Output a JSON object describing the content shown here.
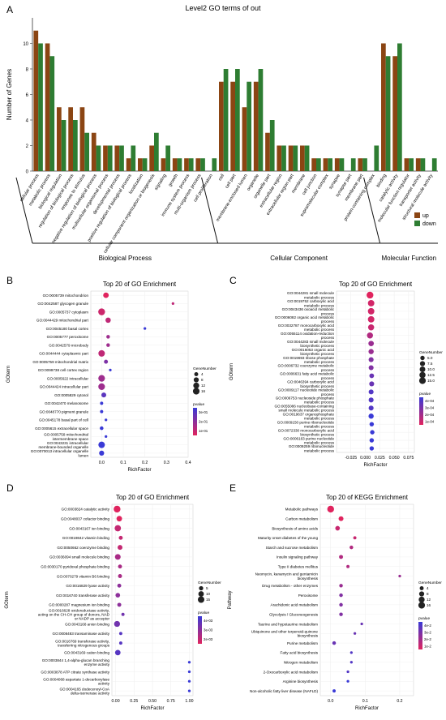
{
  "chart_data": [
    {
      "panel": "A",
      "type": "bar",
      "title": "Level2 GO terms of out",
      "ylabel": "Number of Genes",
      "ylim": [
        0,
        12
      ],
      "yticks": [
        0,
        2,
        4,
        6,
        8,
        10
      ],
      "categories": [
        "cellular process",
        "metabolic process",
        "biological regulation",
        "regulation of biological process",
        "response to stimulus",
        "negative regulation of biological process",
        "multicellular organismal process",
        "developmental process",
        "positive regulation of biological process",
        "localization",
        "cellular component organization or biogenesis",
        "signaling",
        "growth",
        "immune system process",
        "multi-organism process",
        "cell proliferation",
        "cell",
        "cell part",
        "membrane-enclosed lumen",
        "organelle",
        "organelle part",
        "extracellular region",
        "extracellular region part",
        "membrane",
        "cell junction",
        "supramolecular complex",
        "synapse",
        "synapse part",
        "membrane part",
        "protein-containing complex",
        "binding",
        "catalytic activity",
        "molecular function regulator",
        "transporter activity",
        "structural molecule activity"
      ],
      "series": [
        {
          "name": "up",
          "color": "#8b4513",
          "values": [
            11,
            10,
            5,
            5,
            5,
            3,
            2,
            2,
            1,
            1,
            2,
            1,
            1,
            1,
            1,
            0,
            7,
            7,
            5,
            7,
            3,
            2,
            2,
            2,
            1,
            1,
            1,
            0,
            1,
            0,
            10,
            9,
            1,
            1,
            0
          ]
        },
        {
          "name": "down",
          "color": "#2e7d32",
          "values": [
            10,
            9,
            4,
            4,
            3,
            2,
            2,
            2,
            2,
            1,
            3,
            2,
            1,
            1,
            1,
            1,
            8,
            8,
            7,
            8,
            4,
            2,
            2,
            2,
            1,
            1,
            1,
            1,
            1,
            2,
            9,
            10,
            1,
            1,
            1
          ]
        }
      ],
      "groups": [
        {
          "name": "Biological Process",
          "start": 0,
          "end": 15
        },
        {
          "name": "Cellular Component",
          "start": 16,
          "end": 29
        },
        {
          "name": "Molecular Function",
          "start": 30,
          "end": 34
        }
      ],
      "legend": "right"
    },
    {
      "panel": "B",
      "type": "scatter",
      "title": "Top 20 of GO Enrichment",
      "xlabel": "RichFactor",
      "ylabel": "GOterm",
      "xlim": [
        -0.05,
        0.4
      ],
      "xticks": [
        "0.0",
        "0.1",
        "0.2",
        "0.3",
        "0.4"
      ],
      "legend_size_title": "GeneNumber",
      "legend_sizes": [
        4,
        8,
        12,
        16
      ],
      "legend_color_title": "pvalue",
      "legend_color_ticks": [
        "3e-01",
        "2e-01",
        "1e-01"
      ],
      "terms": [
        "GO:0005739 mitochondrion",
        "GO:0042587 glycogen granule",
        "GO:0005737 cytoplasm",
        "GO:0044429 mitochondrial part",
        "GO:0045180 basal cortex",
        "GO:0005777 peroxisome",
        "GO:0042579 microbody",
        "GO:0044444 cytoplasmic part",
        "GO:0005759 mitochondrial matrix",
        "GO:0099738 cell cortex region",
        "GO:0005622 intracellular",
        "GO:0044424 intracellular part",
        "GO:0005829 cytosol",
        "GO:0042470 melanosome",
        "GO:0048770 pigment granule",
        "GO:0045178 basal part of cell",
        "GO:0005615 extracellular space",
        "GO:0005758 mitochondrial intermembrane space",
        "GO:0043231 intracellular membrane-bounded organelle",
        "GO:0070013 intracellular organelle lumen"
      ],
      "richfactor": [
        0.02,
        0.33,
        0.0,
        0.03,
        0.2,
        0.03,
        0.03,
        0.0,
        0.02,
        0.04,
        0.0,
        0.0,
        0.01,
        0.0,
        0.0,
        0.02,
        0.0,
        0.02,
        0.0,
        0.0
      ],
      "genenumber": [
        10,
        1,
        17,
        9,
        1,
        3,
        3,
        15,
        4,
        1,
        16,
        16,
        7,
        2,
        2,
        1,
        3,
        1,
        15,
        8
      ],
      "pvalue": [
        0.05,
        0.1,
        0.08,
        0.1,
        0.3,
        0.15,
        0.15,
        0.1,
        0.2,
        0.3,
        0.15,
        0.15,
        0.25,
        0.3,
        0.3,
        0.3,
        0.3,
        0.3,
        0.3,
        0.3
      ]
    },
    {
      "panel": "C",
      "type": "scatter",
      "title": "Top 20 of GO Enrichment",
      "xlabel": "RichFactor",
      "ylabel": "GOterm",
      "xlim": [
        -0.05,
        0.085
      ],
      "xticks": [
        "-0.025",
        "0.000",
        "0.025",
        "0.050",
        "0.075"
      ],
      "legend_size_title": "GeneNumber",
      "legend_sizes": [
        "5.0",
        "7.5",
        "10.0",
        "12.5",
        "15.0"
      ],
      "legend_color_title": "pvalue",
      "legend_color_ticks": [
        "4e-04",
        "3e-04",
        "2e-04",
        "1e-04"
      ],
      "terms": [
        "GO:0044281 small molecule metabolic process",
        "GO:0019752 carboxylic acid metabolic process",
        "GO:0043436 oxoacid metabolic process",
        "GO:0006082 organic acid metabolic process",
        "GO:0032787 monocarboxylic acid metabolic process",
        "GO:0055114 oxidation-reduction process",
        "GO:0044283 small molecule biosynthetic process",
        "GO:0016053 organic acid biosynthetic process",
        "GO:0019693 ribose phosphate metabolic process",
        "GO:0006732 coenzyme metabolic process",
        "GO:0006631 fatty acid metabolic process",
        "GO:0046394 carboxylic acid biosynthetic process",
        "GO:0009117 nucleotide metabolic process",
        "GO:0006753 nucleoside phosphate metabolic process",
        "GO:0055086 nucleobase-containing small molecule metabolic process",
        "GO:0019637 organophosphate metabolic process",
        "GO:0009150 purine ribonucleotide metabolic process",
        "GO:0072330 monocarboxylic acid biosynthetic process",
        "GO:0006163 purine nucleotide metabolic process",
        "GO:0009259 ribonucleotide metabolic process"
      ],
      "richfactor": [
        0.008,
        0.01,
        0.01,
        0.01,
        0.01,
        0.008,
        0.01,
        0.01,
        0.01,
        0.01,
        0.011,
        0.011,
        0.01,
        0.01,
        0.01,
        0.01,
        0.011,
        0.012,
        0.011,
        0.011
      ],
      "genenumber": [
        16,
        14,
        14,
        14,
        12,
        12,
        9,
        8,
        7,
        7,
        6,
        7,
        7,
        7,
        7,
        8,
        5,
        5,
        5,
        5
      ],
      "pvalue": [
        5e-05,
        8e-05,
        8e-05,
        8e-05,
        0.0001,
        0.00015,
        0.0002,
        0.0002,
        0.00025,
        0.00025,
        0.0003,
        0.0003,
        0.00035,
        0.00035,
        0.00035,
        0.0004,
        0.0004,
        0.0004,
        0.0004,
        0.0004
      ]
    },
    {
      "panel": "D",
      "type": "scatter",
      "title": "Top 20 of GO Enrichment",
      "xlabel": "RichFactor",
      "ylabel": "GOterm",
      "xlim": [
        -0.05,
        1.05
      ],
      "xticks": [
        "0.00",
        "0.25",
        "0.50",
        "0.75",
        "1.00"
      ],
      "legend_size_title": "GeneNumber",
      "legend_sizes": [
        5,
        10,
        15
      ],
      "legend_color_title": "pvalue",
      "legend_color_ticks": [
        "4e-03",
        "3e-03",
        "2e-03"
      ],
      "terms": [
        "GO:0003824 catalytic activity",
        "GO:0048037 cofactor binding",
        "GO:0043167 ion binding",
        "GO:0019842 vitamin binding",
        "GO:0050662 coenzyme binding",
        "GO:0036094 small molecule binding",
        "GO:0030170 pyridoxal phosphate binding",
        "GO:0070279 vitamin B6 binding",
        "GO:0016829 lyase activity",
        "GO:0016740 transferase activity",
        "GO:0000287 magnesium ion binding",
        "GO:0016628 oxidoreductase activity, acting on the CH-CH group of donors, NAD or NADP as acceptor",
        "GO:0043168 anion binding",
        "GO:0008483 transaminase activity",
        "GO:0016769 transferase activity, transferring nitrogenous groups",
        "GO:0043169 cation binding",
        "GO:0003844 1,4-alpha-glucan branching enzyme activity",
        "GO:0003878 ATP citrate synthase activity",
        "GO:0004068 aspartate 1-decarboxylase activity",
        "GO:0004165 dodecenoyl-CoA delta-isomerase activity"
      ],
      "richfactor": [
        0.02,
        0.05,
        0.03,
        0.07,
        0.06,
        0.03,
        0.06,
        0.06,
        0.05,
        0.03,
        0.05,
        0.1,
        0.02,
        0.07,
        0.07,
        0.03,
        1.0,
        1.0,
        1.0,
        1.0
      ],
      "genenumber": [
        17,
        10,
        14,
        4,
        7,
        11,
        4,
        4,
        4,
        6,
        4,
        2,
        12,
        2,
        2,
        10,
        1,
        1,
        1,
        1
      ],
      "pvalue": [
        0.0015,
        0.0015,
        0.002,
        0.002,
        0.002,
        0.0025,
        0.0025,
        0.0025,
        0.003,
        0.003,
        0.003,
        0.0035,
        0.0035,
        0.004,
        0.004,
        0.004,
        0.0045,
        0.0045,
        0.0045,
        0.0045
      ]
    },
    {
      "panel": "E",
      "type": "scatter",
      "title": "Top 20 of KEGG Enrichment",
      "xlabel": "RichFactor",
      "ylabel": "Pathway",
      "xlim": [
        -0.03,
        0.24
      ],
      "xticks": [
        "0.0",
        "0.1",
        "0.2"
      ],
      "legend_size_title": "GeneNumber",
      "legend_sizes": [
        4,
        8,
        12,
        16
      ],
      "legend_color_title": "pvalue",
      "legend_color_ticks": [
        "4e-2",
        "3e-2",
        "2e-2",
        "1e-2"
      ],
      "terms": [
        "Metabolic pathways",
        "Carbon metabolism",
        "Biosynthesis of amino acids",
        "Maturity onset diabetes of the young",
        "Starch and sucrose metabolism",
        "Insulin signaling pathway",
        "Type II diabetes mellitus",
        "Neomycin, kanamycin and gentamicin biosynthesis",
        "Drug metabolism - other enzymes",
        "Peroxisome",
        "Arachidonic acid metabolism",
        "Glycolysis / Gluconeogenesis",
        "Taurine and hypotaurine metabolism",
        "Ubiquinone and other terpenoid-quinone biosynthesis",
        "Purine metabolism",
        "Fatty acid biosynthesis",
        "Nitrogen metabolism",
        "2-Oxocarboxylic acid metabolism",
        "Arginine biosynthesis",
        "Non-alcoholic fatty liver disease (NAFLD)"
      ],
      "richfactor": [
        0.0,
        0.03,
        0.02,
        0.07,
        0.06,
        0.03,
        0.05,
        0.2,
        0.03,
        0.03,
        0.03,
        0.03,
        0.09,
        0.07,
        0.01,
        0.06,
        0.06,
        0.05,
        0.05,
        0.01
      ],
      "genenumber": [
        17,
        7,
        6,
        2,
        3,
        4,
        2,
        1,
        3,
        3,
        3,
        3,
        1,
        1,
        3,
        1,
        1,
        1,
        1,
        2
      ],
      "pvalue": [
        0.01,
        0.01,
        0.015,
        0.015,
        0.02,
        0.02,
        0.02,
        0.025,
        0.025,
        0.03,
        0.03,
        0.03,
        0.035,
        0.035,
        0.035,
        0.04,
        0.04,
        0.04,
        0.045,
        0.045
      ]
    }
  ],
  "labels": {
    "A": "A",
    "B": "B",
    "C": "C",
    "D": "D",
    "E": "E"
  },
  "colors": {
    "up": "#8b4513",
    "down": "#2e7d32",
    "pvalue_low": "#e0245e",
    "pvalue_high": "#3a3ad6"
  }
}
